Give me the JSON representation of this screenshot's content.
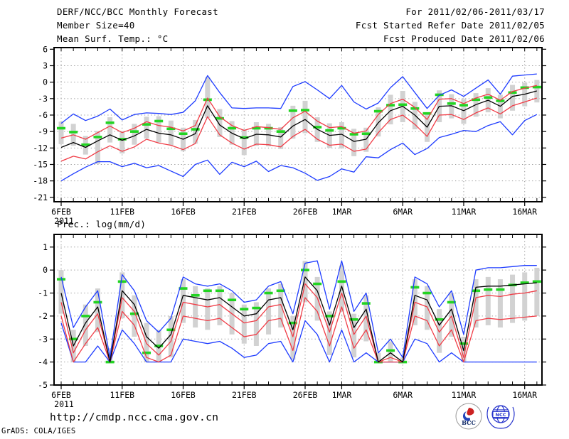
{
  "header": {
    "title": "DERF/NCC/BCC Monthly Forecast",
    "member_size": "Member Size=40",
    "for_period": "For 2011/02/06-2011/03/17",
    "fcst_started": "Fcst Started Refer Date 2011/02/05",
    "fcst_produced": "Fcst Produced Date 2011/02/06"
  },
  "footer": {
    "url": "http://cmdp.ncc.cma.gov.cn",
    "credit": "GrADS: COLA/IGES",
    "bcc_label": "BCC",
    "ncc_label": "NCC"
  },
  "colors": {
    "ensemble_envelope_blue": "#1e3cff",
    "sigma_band_red": "#f03c46",
    "ensemble_mean_black": "#000000",
    "median_dash_green": "#22d422",
    "spread_bar_gray": "#d2d2d2",
    "grid_gray": "#989898",
    "frame_black": "#000000",
    "logo_bcc_red": "#cc2222",
    "logo_bcc_blue": "#2244bb",
    "logo_ncc_blue": "#2533cc"
  },
  "chart_data": [
    {
      "type": "line",
      "title": "Mean Surf. Temp.: °C",
      "x_sublabel": "2011",
      "n_days": 40,
      "x_tick_labels": [
        "6FEB",
        "11FEB",
        "16FEB",
        "21FEB",
        "26FEB",
        "1MAR",
        "6MAR",
        "11MAR",
        "16MAR"
      ],
      "x_tick_days": [
        0,
        5,
        10,
        15,
        20,
        23,
        28,
        33,
        38
      ],
      "yticks": [
        6,
        3,
        0,
        -3,
        -6,
        -9,
        -12,
        -15,
        -18,
        -21
      ],
      "ylim": [
        -21.8,
        6.3
      ],
      "series": [
        {
          "name": "ensemble-max",
          "color": "#1e3cff",
          "values": [
            -7.5,
            -5.8,
            -7.0,
            -6.2,
            -4.9,
            -6.9,
            -5.9,
            -5.6,
            -5.7,
            -5.9,
            -5.5,
            -3.4,
            1.2,
            -1.9,
            -4.7,
            -4.8,
            -4.7,
            -4.7,
            -4.8,
            -0.8,
            0.1,
            -1.4,
            -3.0,
            -0.6,
            -3.6,
            -4.9,
            -3.8,
            -1.0,
            1.0,
            -1.9,
            -4.8,
            -2.4,
            -1.4,
            -2.6,
            -1.1,
            0.4,
            -2.2,
            1.1,
            1.3,
            1.5
          ]
        },
        {
          "name": "upper-red-band",
          "color": "#f03c46",
          "values": [
            -10.2,
            -9.6,
            -10.4,
            -9.2,
            -8.0,
            -9.2,
            -8.4,
            -7.2,
            -7.9,
            -8.2,
            -8.9,
            -7.9,
            -2.9,
            -6.3,
            -7.9,
            -8.8,
            -8.1,
            -8.3,
            -8.6,
            -6.5,
            -5.3,
            -7.1,
            -8.3,
            -8.1,
            -9.3,
            -8.9,
            -5.9,
            -3.9,
            -3.1,
            -4.6,
            -6.8,
            -3.1,
            -3.0,
            -3.9,
            -2.9,
            -2.2,
            -3.3,
            -1.7,
            -1.1,
            -0.6
          ]
        },
        {
          "name": "ensemble-mean",
          "color": "#000000",
          "values": [
            -11.9,
            -11.0,
            -11.9,
            -10.7,
            -9.6,
            -10.6,
            -9.8,
            -8.6,
            -9.3,
            -9.6,
            -10.4,
            -9.4,
            -4.3,
            -7.8,
            -9.3,
            -10.3,
            -9.5,
            -9.6,
            -10.0,
            -8.0,
            -6.8,
            -8.6,
            -9.7,
            -9.5,
            -10.8,
            -10.4,
            -7.4,
            -5.2,
            -4.4,
            -6.0,
            -8.2,
            -4.4,
            -4.3,
            -5.2,
            -4.1,
            -3.3,
            -4.4,
            -2.6,
            -2.2,
            -1.6
          ]
        },
        {
          "name": "lower-red-band",
          "color": "#f03c46",
          "values": [
            -14.4,
            -13.5,
            -14.0,
            -12.7,
            -11.6,
            -12.6,
            -11.8,
            -10.4,
            -11.1,
            -11.5,
            -12.3,
            -11.2,
            -6.3,
            -9.6,
            -11.1,
            -12.2,
            -11.3,
            -11.4,
            -11.8,
            -9.9,
            -8.6,
            -10.4,
            -11.5,
            -11.3,
            -12.6,
            -12.2,
            -9.2,
            -6.8,
            -6.0,
            -7.7,
            -9.9,
            -6.0,
            -5.9,
            -6.8,
            -5.6,
            -4.7,
            -5.8,
            -4.3,
            -3.6,
            -2.9
          ]
        },
        {
          "name": "ensemble-min",
          "color": "#1e3cff",
          "values": [
            -18.0,
            -16.7,
            -15.5,
            -14.5,
            -14.5,
            -15.4,
            -14.8,
            -15.6,
            -15.2,
            -16.2,
            -17.2,
            -15.0,
            -14.2,
            -16.8,
            -14.6,
            -15.4,
            -14.4,
            -16.3,
            -15.2,
            -15.6,
            -16.6,
            -17.9,
            -17.2,
            -15.8,
            -16.4,
            -13.6,
            -13.8,
            -12.3,
            -11.1,
            -13.2,
            -12.1,
            -10.1,
            -9.5,
            -8.8,
            -9.0,
            -7.9,
            -7.2,
            -9.6,
            -7.0,
            -5.9
          ]
        },
        {
          "name": "daily-median-green-dash",
          "color": "#22d422",
          "values": [
            -8.4,
            -9.1,
            -11.4,
            -10.0,
            -7.4,
            -10.4,
            -9.0,
            -7.7,
            -7.1,
            -8.5,
            -9.4,
            -8.6,
            -3.2,
            -6.6,
            -8.4,
            -10.1,
            -8.4,
            -8.4,
            -9.0,
            -5.2,
            -5.1,
            -8.2,
            -8.8,
            -8.4,
            -9.5,
            -9.4,
            -5.3,
            -4.2,
            -4.1,
            -4.8,
            -5.7,
            -2.3,
            -3.9,
            -4.2,
            -3.2,
            -2.8,
            -3.4,
            -1.9,
            -1.0,
            -0.9
          ]
        }
      ],
      "spread_bars": {
        "top": [
          -7.2,
          -7.6,
          -9.8,
          -8.9,
          -6.4,
          -8.9,
          -7.6,
          -6.3,
          -6.2,
          -7.0,
          -8.3,
          -6.9,
          0.9,
          -4.9,
          -7.1,
          -8.6,
          -7.3,
          -7.6,
          -8.2,
          -4.3,
          -3.4,
          -6.4,
          -7.5,
          -7.3,
          -8.5,
          -8.3,
          -4.6,
          -2.3,
          -1.6,
          -3.6,
          -5.6,
          -1.5,
          -2.2,
          -3.1,
          -2.0,
          -1.1,
          -2.3,
          -0.5,
          -0.1,
          0.4
        ],
        "bottom": [
          -11.3,
          -11.6,
          -13.2,
          -14.9,
          -11.0,
          -13.0,
          -11.4,
          -10.3,
          -11.0,
          -11.5,
          -12.6,
          -11.2,
          -6.5,
          -10.0,
          -11.4,
          -13.3,
          -11.6,
          -11.7,
          -12.2,
          -10.3,
          -9.3,
          -10.9,
          -12.0,
          -12.1,
          -13.5,
          -12.7,
          -9.9,
          -7.7,
          -7.3,
          -8.6,
          -10.9,
          -7.3,
          -6.6,
          -7.6,
          -6.3,
          -5.5,
          -6.6,
          -5.2,
          -4.4,
          -3.7
        ]
      }
    },
    {
      "type": "line",
      "title": "Prec.: log(mm/d)",
      "x_sublabel": "2011",
      "n_days": 40,
      "x_tick_labels": [
        "6FEB",
        "11FEB",
        "16FEB",
        "21FEB",
        "26FEB",
        "1MAR",
        "6MAR",
        "11MAR",
        "16MAR"
      ],
      "x_tick_days": [
        0,
        5,
        10,
        15,
        20,
        23,
        28,
        33,
        38
      ],
      "yticks": [
        1,
        0,
        -1,
        -2,
        -3,
        -4,
        -5
      ],
      "ylim": [
        -5.0,
        1.55
      ],
      "series": [
        {
          "name": "ensemble-max",
          "color": "#1e3cff",
          "values": [
            -0.3,
            -2.5,
            -1.6,
            -0.9,
            -3.8,
            -0.2,
            -0.9,
            -2.2,
            -2.7,
            -2.1,
            -0.3,
            -0.6,
            -0.7,
            -0.6,
            -0.9,
            -1.4,
            -1.3,
            -0.7,
            -0.5,
            -1.9,
            0.3,
            0.4,
            -1.7,
            0.4,
            -1.8,
            -1.0,
            -3.6,
            -3.0,
            -3.8,
            -0.3,
            -0.6,
            -1.6,
            -0.9,
            -2.8,
            0.0,
            0.1,
            0.1,
            0.15,
            0.2,
            0.2
          ]
        },
        {
          "name": "upper-red-band",
          "color": "#f03c46",
          "values": [
            -1.4,
            -3.6,
            -2.6,
            -1.9,
            -4.0,
            -1.2,
            -1.8,
            -3.2,
            -3.7,
            -3.1,
            -1.4,
            -1.5,
            -1.6,
            -1.5,
            -1.9,
            -2.3,
            -2.2,
            -1.6,
            -1.5,
            -2.9,
            -0.6,
            -1.2,
            -2.7,
            -1.0,
            -2.8,
            -2.0,
            -4.0,
            -3.8,
            -4.0,
            -1.4,
            -1.6,
            -2.7,
            -2.0,
            -3.8,
            -1.2,
            -1.1,
            -1.15,
            -1.05,
            -1.0,
            -0.9
          ]
        },
        {
          "name": "ensemble-mean",
          "color": "#000000",
          "values": [
            -1.0,
            -3.3,
            -2.3,
            -1.6,
            -4.0,
            -0.9,
            -1.5,
            -2.9,
            -3.4,
            -2.8,
            -1.1,
            -1.2,
            -1.3,
            -1.2,
            -1.6,
            -2.0,
            -1.9,
            -1.3,
            -1.2,
            -2.6,
            -0.3,
            -0.9,
            -2.4,
            -0.7,
            -2.5,
            -1.7,
            -4.0,
            -3.6,
            -4.0,
            -1.1,
            -1.3,
            -2.4,
            -1.7,
            -3.5,
            -0.75,
            -0.7,
            -0.7,
            -0.65,
            -0.6,
            -0.55
          ]
        },
        {
          "name": "lower-red-band",
          "color": "#f03c46",
          "values": [
            -2.0,
            -4.0,
            -3.2,
            -2.5,
            -4.0,
            -1.8,
            -2.4,
            -3.8,
            -4.0,
            -3.7,
            -2.0,
            -2.1,
            -2.2,
            -2.1,
            -2.5,
            -2.9,
            -2.8,
            -2.2,
            -2.1,
            -3.5,
            -1.2,
            -1.8,
            -3.3,
            -1.6,
            -3.4,
            -2.6,
            -4.0,
            -4.0,
            -4.0,
            -2.0,
            -2.2,
            -3.3,
            -2.6,
            -4.0,
            -2.2,
            -2.1,
            -2.15,
            -2.1,
            -2.05,
            -2.0
          ]
        },
        {
          "name": "ensemble-min",
          "color": "#1e3cff",
          "values": [
            -2.3,
            -4.0,
            -4.0,
            -3.3,
            -4.0,
            -2.6,
            -3.2,
            -4.0,
            -4.0,
            -4.0,
            -3.0,
            -3.1,
            -3.2,
            -3.1,
            -3.4,
            -3.8,
            -3.7,
            -3.2,
            -3.1,
            -4.0,
            -2.2,
            -2.8,
            -4.0,
            -2.6,
            -4.0,
            -3.6,
            -4.0,
            -4.0,
            -4.0,
            -3.0,
            -3.2,
            -4.0,
            -3.6,
            -4.0,
            -4.0,
            -4.0,
            -4.0,
            -4.0,
            -4.0,
            -4.0
          ]
        },
        {
          "name": "daily-median-green-dash",
          "color": "#22d422",
          "values": [
            -0.4,
            -3.0,
            -2.0,
            -1.4,
            -4.0,
            -0.5,
            -1.9,
            -3.6,
            -3.3,
            -2.6,
            -0.8,
            -1.1,
            -0.9,
            -0.9,
            -1.3,
            -1.7,
            -1.65,
            -1.0,
            -0.9,
            -2.3,
            0.0,
            -0.6,
            -2.0,
            -0.5,
            -2.15,
            -1.45,
            -4.0,
            -3.5,
            -4.0,
            -0.75,
            -1.0,
            -2.15,
            -1.4,
            -3.2,
            -0.9,
            -0.85,
            -0.85,
            -0.65,
            -0.55,
            -0.5
          ]
        }
      ],
      "spread_bars": {
        "top": [
          0.0,
          -2.6,
          -1.5,
          -0.8,
          -3.4,
          -0.1,
          -1.1,
          -2.3,
          -2.6,
          -2.0,
          -0.4,
          -0.7,
          -0.8,
          -0.7,
          -1.0,
          -1.5,
          -1.4,
          -0.8,
          -0.6,
          -2.0,
          0.4,
          -0.3,
          -1.8,
          0.2,
          -1.9,
          -1.1,
          -3.6,
          -3.1,
          -3.8,
          -0.4,
          -0.7,
          -1.7,
          -1.0,
          -2.9,
          -0.4,
          -0.3,
          -0.4,
          -0.2,
          -0.1,
          0.1
        ],
        "bottom": [
          -1.9,
          -4.0,
          -3.3,
          -2.7,
          -4.0,
          -2.1,
          -2.9,
          -4.0,
          -4.0,
          -3.8,
          -2.3,
          -2.5,
          -2.6,
          -2.4,
          -2.8,
          -3.2,
          -3.3,
          -2.8,
          -2.5,
          -3.9,
          -1.4,
          -2.2,
          -3.7,
          -1.8,
          -3.8,
          -3.1,
          -4.0,
          -4.0,
          -4.0,
          -2.4,
          -2.6,
          -3.6,
          -2.9,
          -4.0,
          -2.5,
          -2.4,
          -2.5,
          -2.3,
          -2.2,
          -2.0
        ]
      }
    }
  ]
}
